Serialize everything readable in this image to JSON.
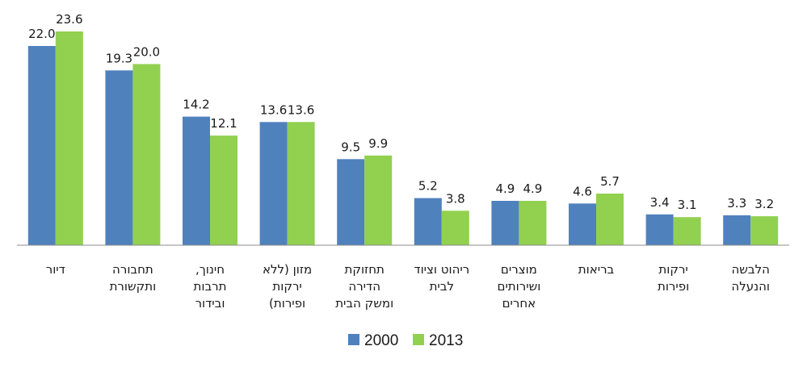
{
  "chart_data": {
    "type": "bar",
    "title": "",
    "xlabel": "",
    "ylabel": "",
    "ylim": [
      0,
      23.6
    ],
    "grid": false,
    "legend_position": "bottom-center",
    "categories": [
      [
        "דיור"
      ],
      [
        "תחבורה",
        "ותקשורת"
      ],
      [
        "חינוך,",
        "תרבות",
        "ובידור"
      ],
      [
        "מזון (ללא",
        "ירקות",
        "ופירות)"
      ],
      [
        "תחזוקת",
        "הדירה",
        "ומשק הבית"
      ],
      [
        "ריהוט וציוד",
        "לבית"
      ],
      [
        "מוצרים",
        "ושירותים",
        "אחרים"
      ],
      [
        "בריאות"
      ],
      [
        "ירקות",
        "ופירות"
      ],
      [
        "הלבשה",
        "והנעלה"
      ]
    ],
    "series": [
      {
        "name": "2000",
        "color": "#4f81bd",
        "values": [
          22.0,
          19.3,
          14.2,
          13.6,
          9.5,
          5.2,
          4.9,
          4.6,
          3.4,
          3.3
        ],
        "labels": [
          "22.0",
          "19.3",
          "14.2",
          "13.6",
          "9.5",
          "5.2",
          "4.9",
          "4.6",
          "3.4",
          "3.3"
        ]
      },
      {
        "name": "2013",
        "color": "#92d050",
        "values": [
          23.6,
          20.0,
          12.1,
          13.6,
          9.9,
          3.8,
          4.9,
          5.7,
          3.1,
          3.2
        ],
        "labels": [
          "23.6",
          "20.0",
          "12.1",
          "13.6",
          "9.9",
          "3.8",
          "4.9",
          "5.7",
          "3.1",
          "3.2"
        ]
      }
    ]
  }
}
